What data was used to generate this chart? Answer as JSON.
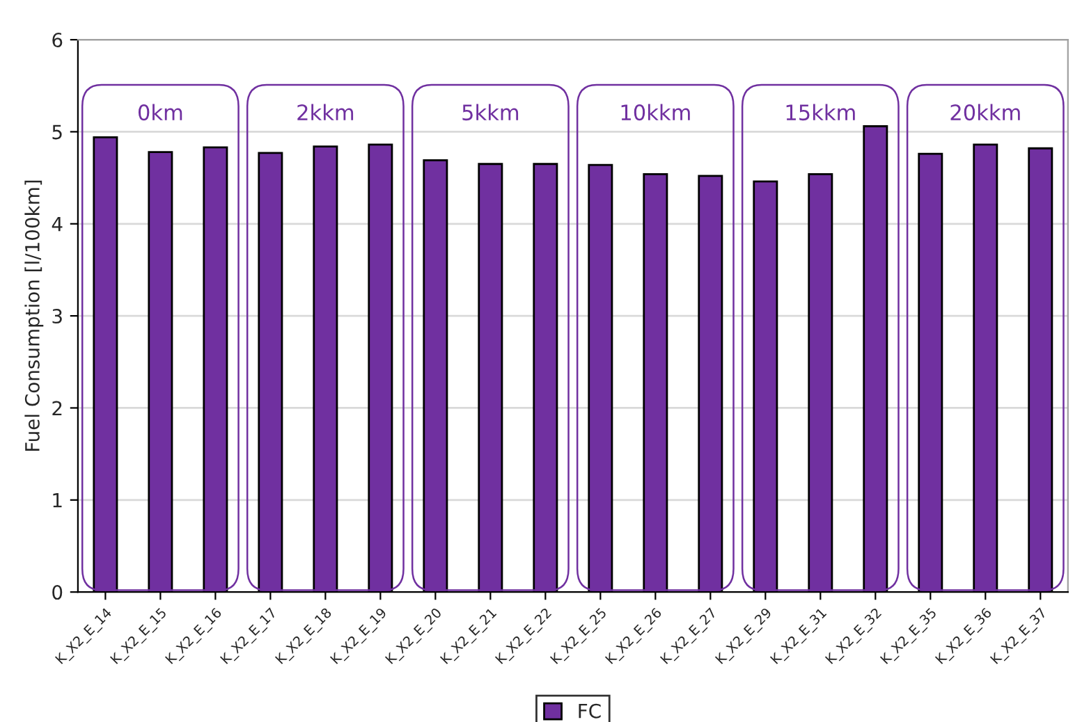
{
  "chart_data": {
    "type": "bar",
    "ylabel": "Fuel Consumption [l/100km]",
    "categories": [
      "K_X2_E_14",
      "K_X2_E_15",
      "K_X2_E_16",
      "K_X2_E_17",
      "K_X2_E_18",
      "K_X2_E_19",
      "K_X2_E_20",
      "K_X2_E_21",
      "K_X2_E_22",
      "K_X2_E_25",
      "K_X2_E_26",
      "K_X2_E_27",
      "K_X2_E_29",
      "K_X2_E_31",
      "K_X2_E_32",
      "K_X2_E_35",
      "K_X2_E_36",
      "K_X2_E_37"
    ],
    "series": [
      {
        "name": "FC",
        "color": "#7030a0",
        "values": [
          4.94,
          4.78,
          4.83,
          4.77,
          4.84,
          4.86,
          4.69,
          4.65,
          4.65,
          4.64,
          4.54,
          4.52,
          4.46,
          4.54,
          5.06,
          4.76,
          4.86,
          4.82
        ]
      }
    ],
    "ylim": [
      0,
      6
    ],
    "yticks": [
      0,
      1,
      2,
      3,
      4,
      5,
      6
    ],
    "grid": "y",
    "legend": "bottom",
    "annotations": [
      "0km",
      "2kkm",
      "5kkm",
      "10kkm",
      "15kkm",
      "20kkm"
    ]
  }
}
